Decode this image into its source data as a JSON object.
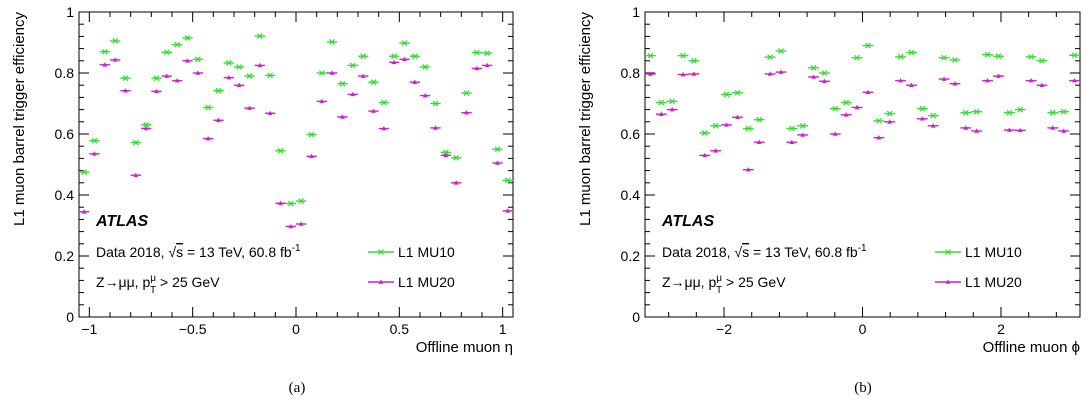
{
  "chart_data": [
    {
      "type": "scatter",
      "caption": "(a)",
      "xlabel": "Offline muon η",
      "ylabel": "L1 muon barrel trigger efficiency",
      "xlim": [
        -1.05,
        1.05
      ],
      "ylim": [
        0,
        1
      ],
      "xticks": [
        -1,
        -0.5,
        0,
        0.5,
        1
      ],
      "xtick_labels": [
        "−1",
        "−0.5",
        "0",
        "0.5",
        "1"
      ],
      "yticks": [
        0,
        0.2,
        0.4,
        0.6,
        0.8,
        1
      ],
      "ytick_labels": [
        "0",
        "0.2",
        "0.4",
        "0.6",
        "0.8",
        "1"
      ],
      "bin_half_width": 0.025,
      "atlas_label": "ATLAS",
      "annotation_line1": {
        "prefix": "Data 2018, ",
        "sqrt": "s",
        "mid": " = 13 TeV, 60.8 fb",
        "sup": "-1"
      },
      "annotation_line2": {
        "prefix": "Z→μμ, p",
        "sup": "μ",
        "sub": "T",
        "suffix": " > 25 GeV"
      },
      "legend": "bottom-right",
      "series": [
        {
          "name": "L1 MU10",
          "color": "#33dd33",
          "x": [
            -1.025,
            -0.975,
            -0.925,
            -0.875,
            -0.825,
            -0.775,
            -0.725,
            -0.675,
            -0.625,
            -0.575,
            -0.525,
            -0.475,
            -0.425,
            -0.375,
            -0.325,
            -0.275,
            -0.225,
            -0.175,
            -0.125,
            -0.075,
            -0.025,
            0.025,
            0.075,
            0.125,
            0.175,
            0.225,
            0.275,
            0.325,
            0.375,
            0.425,
            0.475,
            0.525,
            0.575,
            0.625,
            0.675,
            0.725,
            0.775,
            0.825,
            0.875,
            0.925,
            0.975,
            1.025
          ],
          "y": [
            0.475,
            0.578,
            0.87,
            0.905,
            0.783,
            0.572,
            0.63,
            0.783,
            0.868,
            0.893,
            0.915,
            0.845,
            0.687,
            0.742,
            0.833,
            0.82,
            0.79,
            0.921,
            0.792,
            0.545,
            0.372,
            0.38,
            0.598,
            0.8,
            0.902,
            0.765,
            0.825,
            0.855,
            0.77,
            0.703,
            0.855,
            0.898,
            0.855,
            0.82,
            0.7,
            0.54,
            0.522,
            0.734,
            0.867,
            0.865,
            0.55,
            0.448
          ]
        },
        {
          "name": "L1 MU20",
          "color": "#cc22cc",
          "x": [
            -1.025,
            -0.975,
            -0.925,
            -0.875,
            -0.825,
            -0.775,
            -0.725,
            -0.675,
            -0.625,
            -0.575,
            -0.525,
            -0.475,
            -0.425,
            -0.375,
            -0.325,
            -0.275,
            -0.225,
            -0.175,
            -0.125,
            -0.075,
            -0.025,
            0.025,
            0.075,
            0.125,
            0.175,
            0.225,
            0.275,
            0.325,
            0.375,
            0.425,
            0.475,
            0.525,
            0.575,
            0.625,
            0.675,
            0.725,
            0.775,
            0.825,
            0.875,
            0.925,
            0.975,
            1.025
          ],
          "y": [
            0.345,
            0.535,
            0.827,
            0.843,
            0.742,
            0.465,
            0.618,
            0.74,
            0.79,
            0.775,
            0.84,
            0.8,
            0.585,
            0.645,
            0.785,
            0.76,
            0.685,
            0.825,
            0.668,
            0.373,
            0.297,
            0.305,
            0.527,
            0.707,
            0.8,
            0.656,
            0.73,
            0.79,
            0.675,
            0.618,
            0.835,
            0.845,
            0.77,
            0.726,
            0.62,
            0.53,
            0.44,
            0.67,
            0.815,
            0.825,
            0.505,
            0.348
          ]
        }
      ]
    },
    {
      "type": "scatter",
      "caption": "(b)",
      "xlabel": "Offline muon ϕ",
      "ylabel": "L1 muon barrel trigger efficiency",
      "xlim": [
        -3.1416,
        3.1416
      ],
      "ylim": [
        0,
        1
      ],
      "xticks": [
        -2,
        0,
        2
      ],
      "xtick_labels": [
        "−2",
        "0",
        "2"
      ],
      "yticks": [
        0,
        0.2,
        0.4,
        0.6,
        0.8,
        1
      ],
      "ytick_labels": [
        "0",
        "0.2",
        "0.4",
        "0.6",
        "0.8",
        "1"
      ],
      "bin_half_width": 0.0785,
      "atlas_label": "ATLAS",
      "annotation_line1": {
        "prefix": "Data 2018, ",
        "sqrt": "s",
        "mid": " = 13 TeV, 60.8 fb",
        "sup": "-1"
      },
      "annotation_line2": {
        "prefix": "Z→μμ, p",
        "sup": "μ",
        "sub": "T",
        "suffix": " > 25 GeV"
      },
      "legend": "bottom-right",
      "series": [
        {
          "name": "L1 MU10",
          "color": "#33dd33",
          "x": [
            -3.063,
            -2.906,
            -2.749,
            -2.592,
            -2.435,
            -2.278,
            -2.121,
            -1.964,
            -1.806,
            -1.649,
            -1.492,
            -1.335,
            -1.178,
            -1.021,
            -0.864,
            -0.707,
            -0.55,
            -0.393,
            -0.236,
            -0.079,
            0.079,
            0.236,
            0.393,
            0.55,
            0.707,
            0.864,
            1.021,
            1.178,
            1.335,
            1.492,
            1.649,
            1.806,
            1.964,
            2.121,
            2.278,
            2.435,
            2.592,
            2.749,
            2.906,
            3.063
          ],
          "y": [
            0.857,
            0.703,
            0.707,
            0.857,
            0.84,
            0.603,
            0.627,
            0.73,
            0.735,
            0.618,
            0.647,
            0.852,
            0.872,
            0.618,
            0.627,
            0.817,
            0.8,
            0.683,
            0.703,
            0.85,
            0.89,
            0.643,
            0.667,
            0.853,
            0.867,
            0.683,
            0.66,
            0.85,
            0.843,
            0.67,
            0.673,
            0.86,
            0.855,
            0.67,
            0.68,
            0.853,
            0.84,
            0.67,
            0.673,
            0.858
          ]
        },
        {
          "name": "L1 MU20",
          "color": "#cc22cc",
          "x": [
            -3.063,
            -2.906,
            -2.749,
            -2.592,
            -2.435,
            -2.278,
            -2.121,
            -1.964,
            -1.806,
            -1.649,
            -1.492,
            -1.335,
            -1.178,
            -1.021,
            -0.864,
            -0.707,
            -0.55,
            -0.393,
            -0.236,
            -0.079,
            0.079,
            0.236,
            0.393,
            0.55,
            0.707,
            0.864,
            1.021,
            1.178,
            1.335,
            1.492,
            1.649,
            1.806,
            1.964,
            2.121,
            2.278,
            2.435,
            2.592,
            2.749,
            2.906,
            3.063
          ],
          "y": [
            0.797,
            0.665,
            0.68,
            0.795,
            0.797,
            0.53,
            0.545,
            0.63,
            0.655,
            0.483,
            0.573,
            0.797,
            0.803,
            0.573,
            0.597,
            0.787,
            0.773,
            0.6,
            0.663,
            0.687,
            0.737,
            0.588,
            0.64,
            0.775,
            0.76,
            0.65,
            0.627,
            0.78,
            0.765,
            0.62,
            0.61,
            0.775,
            0.79,
            0.613,
            0.612,
            0.775,
            0.76,
            0.62,
            0.61,
            0.775
          ]
        }
      ]
    }
  ]
}
